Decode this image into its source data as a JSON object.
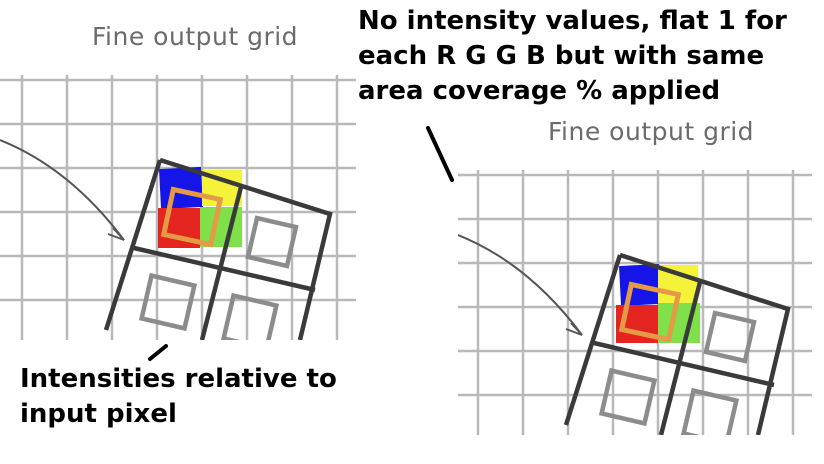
{
  "left_panel": {
    "grid_title": "Fine output grid"
  },
  "right_panel": {
    "grid_title": "Fine output grid"
  },
  "caption_top": {
    "lines": [
      "No intensity values, flat 1 for",
      "each R G G B but with same",
      "area coverage % applied"
    ]
  },
  "caption_bottom": {
    "lines": [
      "Intensities relative to",
      "input pixel"
    ]
  },
  "colors": {
    "blue": "#1515e8",
    "yellow": "#f5f23a",
    "red": "#e4251f",
    "green": "#7fe04a",
    "orange_square": "#e59a45",
    "grid": "#b9b9b9",
    "outline": "#3a3a3a",
    "inner_square": "#8c8c8c"
  }
}
